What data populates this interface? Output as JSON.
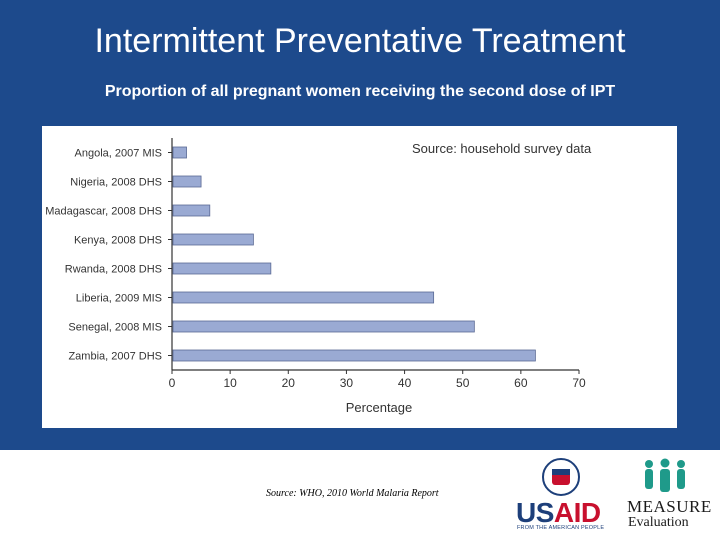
{
  "slide": {
    "title": "Intermittent Preventative Treatment",
    "subtitle": "Proportion of all pregnant women receiving the second dose of IPT",
    "footer_source": "Source: WHO, 2010 World Malaria Report"
  },
  "logos": {
    "usaid_us": "US",
    "usaid_aid": "AID",
    "usaid_tagline": "FROM THE AMERICAN PEOPLE",
    "measure_name": "MEASURE",
    "measure_sub": "Evaluation"
  },
  "colors": {
    "background": "#1d4a8c",
    "bar_fill": "#9aaad3",
    "bar_stroke": "#5b6a95"
  },
  "chart_data": {
    "type": "bar",
    "orientation": "horizontal",
    "categories": [
      "Angola, 2007 MIS",
      "Nigeria, 2008 DHS",
      "Madagascar, 2008 DHS",
      "Kenya, 2008 DHS",
      "Rwanda, 2008 DHS",
      "Liberia, 2009 MIS",
      "Senegal, 2008 MIS",
      "Zambia, 2007 DHS"
    ],
    "values": [
      2.5,
      5,
      6.5,
      14,
      17,
      45,
      52,
      62.5
    ],
    "xlabel": "Percentage",
    "ylabel": "",
    "xlim": [
      0,
      70
    ],
    "xticks": [
      0,
      10,
      20,
      30,
      40,
      50,
      60,
      70
    ],
    "annotation": "Source: household survey data",
    "legend": "none",
    "grid": false
  }
}
